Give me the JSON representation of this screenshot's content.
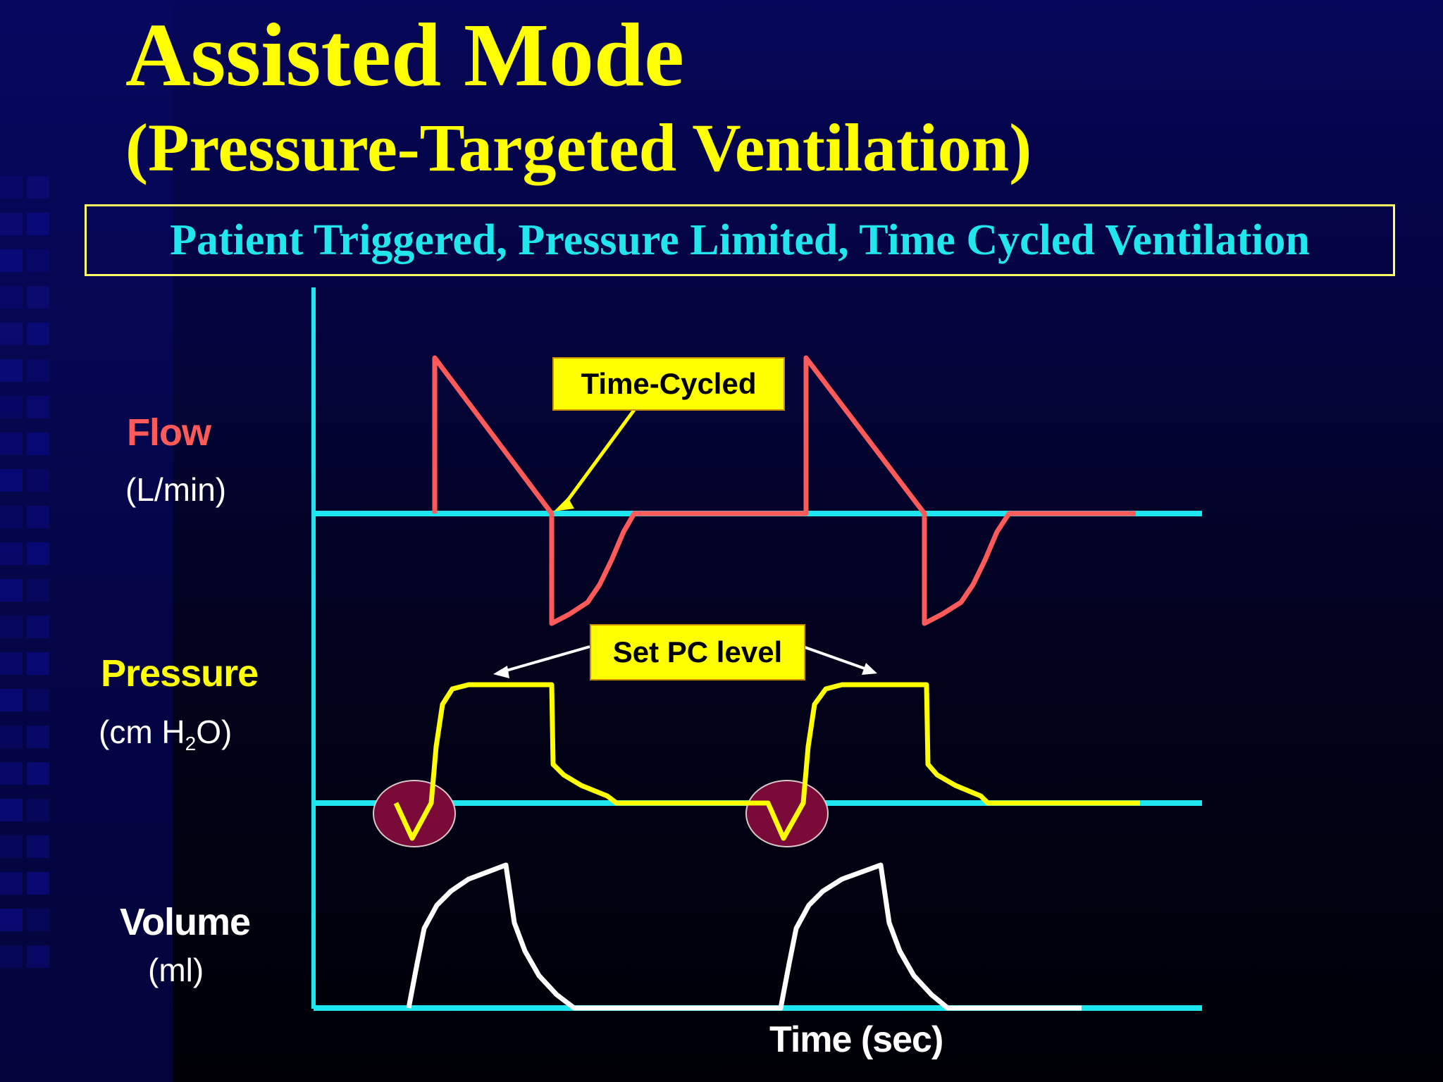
{
  "slide": {
    "title": "Assisted Mode",
    "subtitle": "(Pressure-Targeted Ventilation)",
    "banner": "Patient Triggered, Pressure Limited, Time Cycled Ventilation"
  },
  "labels": {
    "flow": {
      "name": "Flow",
      "unit": "(L/min)"
    },
    "pressure": {
      "name": "Pressure",
      "unit_pre": "(cm H",
      "unit_sub": "2",
      "unit_post": "O)"
    },
    "volume": {
      "name": "Volume",
      "unit": "(ml)"
    },
    "time_axis": "Time (sec)"
  },
  "callouts": {
    "time_cycled": "Time-Cycled",
    "set_pc_level": "Set PC level"
  },
  "colors": {
    "axis": "#1ee6ee",
    "flow": "#ff5a5a",
    "pressure": "#ffff00",
    "volume": "#ffffff",
    "title": "#ffff00",
    "banner_text": "#22e6ee",
    "trigger_marker": "#7a0b38"
  }
}
